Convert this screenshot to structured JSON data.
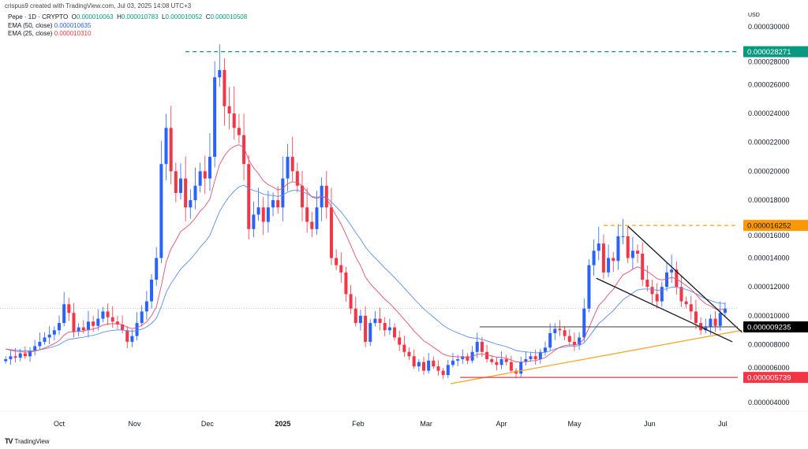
{
  "header": {
    "credit": "crispus9 created with TradingView.com, Jul 03, 2025 14:08 UTC+3",
    "symbol": "Pepe · 1D · CRYPTO",
    "ohlc": [
      {
        "label": "O",
        "value": "0.000010063"
      },
      {
        "label": "H",
        "value": "0.000010783"
      },
      {
        "label": "L",
        "value": "0.000010052"
      },
      {
        "label": "C",
        "value": "0.000010508"
      }
    ],
    "ema50": {
      "label": "EMA (50, close)",
      "value": "0.000010635"
    },
    "ema25": {
      "label": "EMA (25, close)",
      "value": "0.000010310"
    }
  },
  "axis": {
    "currency": "USD"
  },
  "footer": {
    "brand": "TradingView",
    "logo_text": "TV"
  },
  "colors": {
    "up": "#2962ff",
    "down": "#f23645",
    "ema50": "#5b8def",
    "ema25": "#e0506f",
    "resistance_high": "#089981",
    "resistance_mid": "#ff9800",
    "support": "#f23645",
    "trend": "#f5a623",
    "wedge": "#131722",
    "level": "#555555"
  },
  "chart_data": {
    "type": "candlestick",
    "title": "",
    "first_candle": "2024-09-09",
    "candle_spacing_days": 2,
    "closes": [
      7.0,
      7.2,
      7.1,
      7.4,
      7.2,
      7.6,
      7.9,
      8.2,
      8.5,
      8.7,
      9.0,
      9.5,
      10.8,
      10.2,
      8.9,
      9.2,
      9.0,
      9.6,
      9.3,
      9.8,
      10.3,
      9.9,
      9.6,
      9.4,
      9.0,
      8.2,
      8.6,
      9.5,
      10.3,
      11.0,
      12.5,
      14.0,
      20.5,
      23.0,
      20.0,
      18.5,
      19.5,
      17.5,
      18.0,
      19.0,
      20.0,
      19.5,
      21.0,
      26.5,
      27.0,
      24.5,
      24.0,
      23.0,
      22.5,
      20.5,
      16.0,
      17.0,
      17.5,
      16.5,
      17.5,
      18.0,
      17.5,
      19.5,
      21.0,
      20.0,
      19.0,
      17.5,
      16.5,
      16.0,
      17.5,
      19.0,
      17.5,
      14.0,
      13.5,
      13.0,
      11.5,
      10.5,
      9.5,
      10.0,
      8.2,
      9.5,
      9.8,
      9.5,
      9.0,
      9.2,
      8.5,
      8.0,
      7.5,
      7.2,
      6.5,
      6.8,
      6.2,
      6.9,
      6.5,
      6.2,
      5.9,
      6.6,
      6.9,
      7.0,
      7.2,
      6.9,
      7.5,
      8.2,
      7.5,
      7.0,
      6.8,
      6.6,
      7.0,
      6.8,
      6.2,
      6.0,
      6.8,
      7.0,
      7.2,
      7.0,
      7.5,
      7.8,
      8.8,
      9.1,
      9.0,
      8.6,
      8.2,
      8.0,
      8.5,
      10.5,
      13.5,
      14.5,
      15.0,
      13.0,
      14.0,
      13.8,
      15.5,
      15.5,
      14.0,
      14.5,
      14.3,
      12.5,
      12.0,
      11.5,
      11.0,
      12.0,
      13.0,
      13.2,
      12.0,
      11.0,
      10.8,
      10.3,
      9.5,
      9.0,
      9.2,
      9.8,
      9.3,
      10.2,
      10.5
    ],
    "price_unit": "0.000001 USD",
    "ylim": [
      4,
      30
    ],
    "y_ticks": [
      "0.000004000",
      "0.000006000",
      "0.000008000",
      "0.000010000",
      "0.000012000",
      "0.000014000",
      "0.000016000",
      "0.000018000",
      "0.000020000",
      "0.000022000",
      "0.000024000",
      "0.000026000",
      "0.000028000",
      "0.000030000"
    ],
    "x_ticks": [
      {
        "label": "Oct",
        "date": "2024-10-01",
        "bold": false
      },
      {
        "label": "Nov",
        "date": "2024-11-01",
        "bold": false
      },
      {
        "label": "Dec",
        "date": "2024-12-01",
        "bold": false
      },
      {
        "label": "2025",
        "date": "2025-01-01",
        "bold": true
      },
      {
        "label": "Feb",
        "date": "2025-02-01",
        "bold": false
      },
      {
        "label": "Mar",
        "date": "2025-03-01",
        "bold": false
      },
      {
        "label": "Apr",
        "date": "2025-04-01",
        "bold": false
      },
      {
        "label": "May",
        "date": "2025-05-01",
        "bold": false
      },
      {
        "label": "Jun",
        "date": "2025-06-01",
        "bold": false
      },
      {
        "label": "Jul",
        "date": "2025-07-01",
        "bold": false
      }
    ],
    "indicators": [
      {
        "name": "EMA (50, close)",
        "period": 50,
        "color": "#5b8def"
      },
      {
        "name": "EMA (25, close)",
        "period": 25,
        "color": "#e0506f"
      }
    ],
    "current_price": 10.508,
    "levels": [
      {
        "value": 28.271,
        "label": "0.000028271",
        "from": "2024-11-22",
        "style": "dashed",
        "color": "#089981",
        "badge_text_color": "#ffffff"
      },
      {
        "value": 16.252,
        "label": "0.000016252",
        "from": "2025-05-13",
        "style": "dashed",
        "color": "#ff9800",
        "badge_text_color": "#131722"
      },
      {
        "value": 9.235,
        "label": "0.000009235",
        "from": "2025-03-23",
        "style": "solid",
        "color": "#555555",
        "badge_bg": "#000000",
        "badge_text_color": "#ffffff"
      },
      {
        "value": 5.739,
        "label": "0.000005739",
        "from": "2025-03-15",
        "style": "solid",
        "color": "#f23645",
        "badge_text_color": "#ffffff"
      }
    ],
    "trendlines": [
      {
        "name": "ascending-support",
        "from": [
          "2025-03-11",
          5.3
        ],
        "to": [
          "2025-07-09",
          9.0
        ],
        "color": "#f5a623"
      },
      {
        "name": "wedge-upper",
        "from": [
          "2025-05-23",
          16.2
        ],
        "to": [
          "2025-07-09",
          8.85
        ],
        "color": "#131722"
      },
      {
        "name": "wedge-lower",
        "from": [
          "2025-05-10",
          12.6
        ],
        "to": [
          "2025-07-05",
          8.2
        ],
        "color": "#131722"
      }
    ]
  }
}
